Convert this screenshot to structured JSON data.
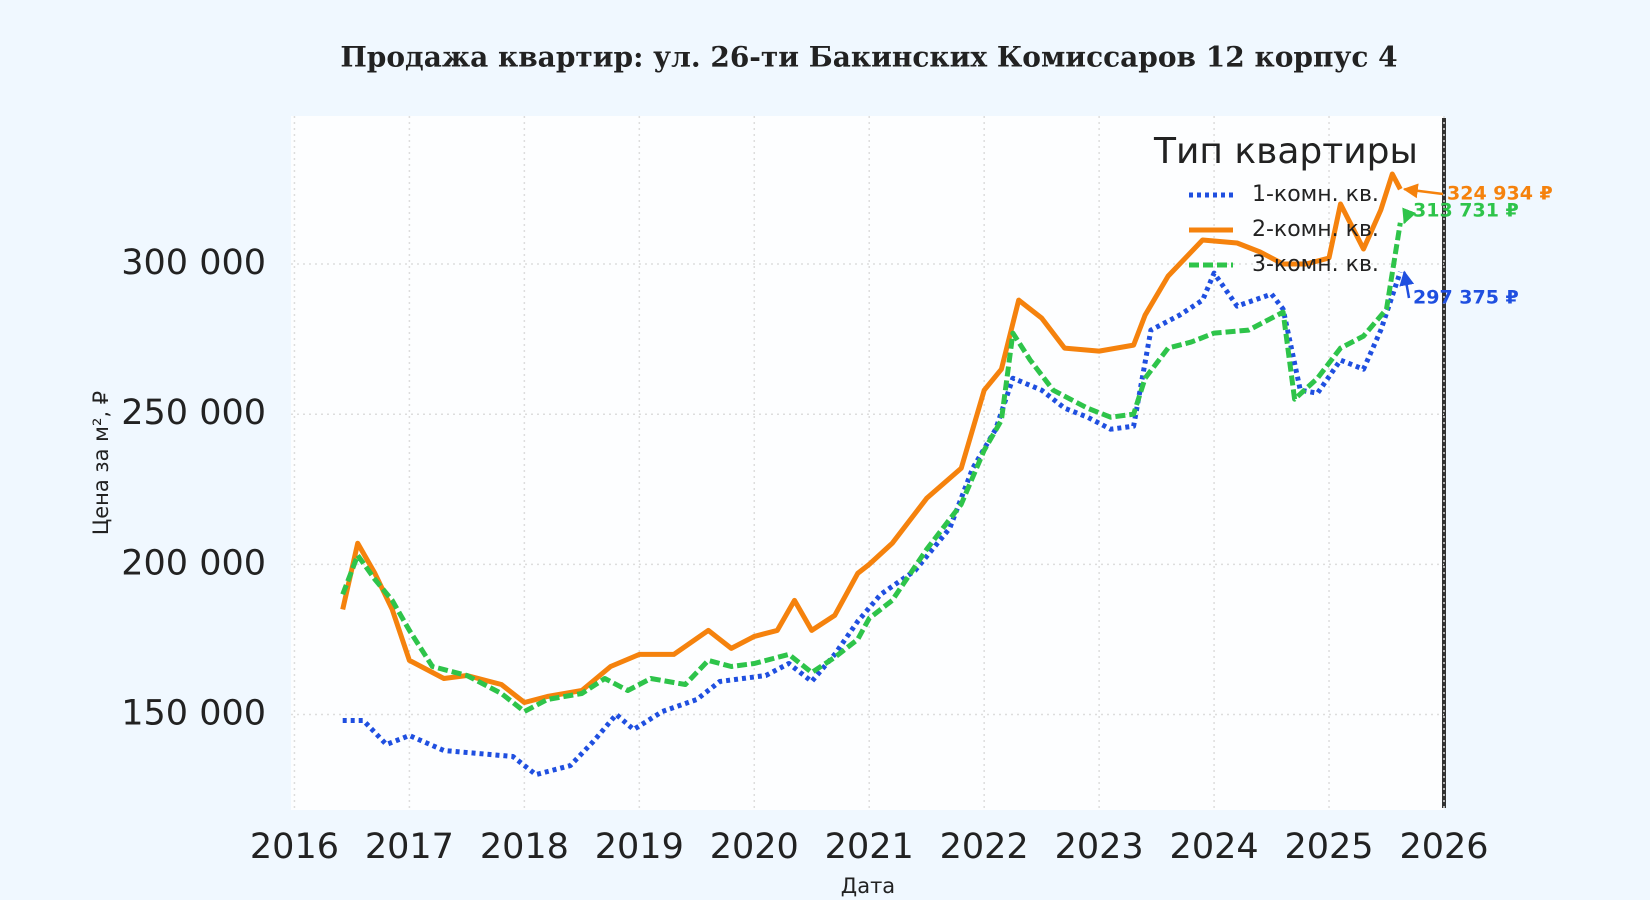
{
  "chart_data": {
    "type": "line",
    "title": "Продажа квартир: ул. 26-ти Бакинских Комиссаров 12 корпус 4",
    "x_label": "Дата",
    "y_label": "Цена за м², ₽",
    "legend_title": "Тип квартиры",
    "legend_position": "upper right",
    "grid": true,
    "xlim": [
      2015.97,
      2026.0
    ],
    "xticks": [
      2016,
      2017,
      2018,
      2019,
      2020,
      2021,
      2022,
      2023,
      2024,
      2025,
      2026
    ],
    "ylim": [
      118200,
      349300
    ],
    "yticks": [
      {
        "value": 150000,
        "label": "150 000"
      },
      {
        "value": 200000,
        "label": "200 000"
      },
      {
        "value": 250000,
        "label": "250 000"
      },
      {
        "value": 300000,
        "label": "300 000"
      }
    ],
    "series": [
      {
        "name": "1-комн. кв.",
        "color": "#1f4fe0",
        "linestyle": "dotted",
        "last_label": "297 375 ₽",
        "x": [
          2016.42,
          2016.6,
          2016.8,
          2017.0,
          2017.3,
          2017.6,
          2017.9,
          2018.1,
          2018.4,
          2018.6,
          2018.8,
          2018.95,
          2019.2,
          2019.5,
          2019.7,
          2019.9,
          2020.1,
          2020.3,
          2020.5,
          2020.7,
          2020.9,
          2021.1,
          2021.4,
          2021.7,
          2021.9,
          2022.1,
          2022.25,
          2022.5,
          2022.7,
          2022.9,
          2023.1,
          2023.3,
          2023.45,
          2023.7,
          2023.9,
          2024.0,
          2024.2,
          2024.5,
          2024.6,
          2024.75,
          2024.9,
          2025.1,
          2025.3,
          2025.45,
          2025.62
        ],
        "values": [
          148000,
          148000,
          140000,
          143000,
          138000,
          137000,
          136000,
          130000,
          133000,
          141000,
          150000,
          145000,
          151000,
          155000,
          161000,
          162000,
          163000,
          167000,
          161000,
          170000,
          181000,
          190000,
          198000,
          212000,
          232000,
          245000,
          262000,
          258000,
          252000,
          249000,
          245000,
          246000,
          278000,
          283000,
          288000,
          297000,
          286000,
          290000,
          285000,
          258000,
          257000,
          268000,
          265000,
          278000,
          297375
        ]
      },
      {
        "name": "2-комн. кв.",
        "color": "#f5820d",
        "linestyle": "solid",
        "last_label": "324 934 ₽",
        "x": [
          2016.42,
          2016.55,
          2016.7,
          2016.85,
          2017.0,
          2017.3,
          2017.5,
          2017.8,
          2018.0,
          2018.2,
          2018.5,
          2018.75,
          2019.0,
          2019.3,
          2019.6,
          2019.8,
          2020.0,
          2020.2,
          2020.35,
          2020.5,
          2020.7,
          2020.9,
          2021.0,
          2021.2,
          2021.5,
          2021.8,
          2022.0,
          2022.15,
          2022.3,
          2022.5,
          2022.7,
          2023.0,
          2023.3,
          2023.4,
          2023.6,
          2023.9,
          2024.2,
          2024.4,
          2024.6,
          2024.8,
          2025.0,
          2025.1,
          2025.3,
          2025.45,
          2025.55,
          2025.62
        ],
        "values": [
          185000,
          207000,
          197000,
          185000,
          168000,
          162000,
          163000,
          160000,
          154000,
          156000,
          158000,
          166000,
          170000,
          170000,
          178000,
          172000,
          176000,
          178000,
          188000,
          178000,
          183000,
          197000,
          200000,
          207000,
          222000,
          232000,
          258000,
          265000,
          288000,
          282000,
          272000,
          271000,
          273000,
          283000,
          296000,
          308000,
          307000,
          304000,
          300000,
          300000,
          302000,
          320000,
          305000,
          318000,
          330000,
          324934
        ]
      },
      {
        "name": "3-комн. кв.",
        "color": "#2ec44a",
        "linestyle": "dashed",
        "last_label": "313 731 ₽",
        "x": [
          2016.42,
          2016.55,
          2016.7,
          2016.85,
          2017.0,
          2017.2,
          2017.5,
          2017.8,
          2018.0,
          2018.2,
          2018.5,
          2018.7,
          2018.9,
          2019.1,
          2019.4,
          2019.6,
          2019.8,
          2020.0,
          2020.3,
          2020.5,
          2020.7,
          2020.9,
          2021.0,
          2021.2,
          2021.5,
          2021.8,
          2022.0,
          2022.15,
          2022.25,
          2022.4,
          2022.6,
          2022.9,
          2023.1,
          2023.3,
          2023.4,
          2023.6,
          2023.8,
          2024.0,
          2024.3,
          2024.6,
          2024.7,
          2024.9,
          2025.1,
          2025.3,
          2025.5,
          2025.62
        ],
        "values": [
          190000,
          203000,
          195000,
          188000,
          178000,
          166000,
          163000,
          157000,
          151000,
          155000,
          157000,
          162000,
          158000,
          162000,
          160000,
          168000,
          166000,
          167000,
          170000,
          164000,
          169000,
          175000,
          182000,
          188000,
          205000,
          220000,
          238000,
          248000,
          277000,
          268000,
          258000,
          252000,
          249000,
          250000,
          262000,
          272000,
          274000,
          277000,
          278000,
          284000,
          255000,
          262000,
          272000,
          276000,
          285000,
          313731
        ]
      }
    ]
  }
}
